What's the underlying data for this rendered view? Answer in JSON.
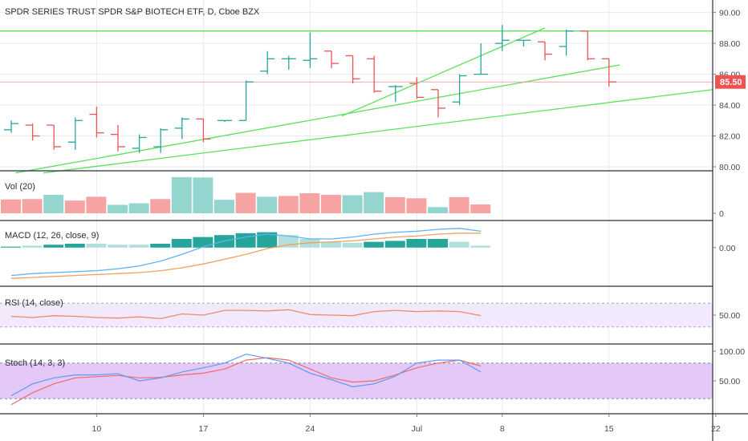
{
  "title": "SPDR SERIES TRUST SPDR S&P BIOTECH ETF, D, Cboe BZX",
  "last_price_label": "85.50",
  "colors": {
    "up": "#26a69a",
    "down": "#ef5350",
    "trend": "#5de05d",
    "last_price_line": "#f5a6a6",
    "macd_line": "#5fb3f0",
    "signal_line": "#f2a05e",
    "rsi_line": "#f08a65",
    "rsi_band": "#f3e9fc",
    "stoch_band": "#e4c8f7",
    "stoch_k": "#5b9bf0",
    "stoch_d": "#ef6a6a",
    "grid": "#e9eaee",
    "axis": "#7a7d85"
  },
  "x_axis": {
    "ticks": [
      {
        "i": 4,
        "label": "10"
      },
      {
        "i": 9,
        "label": "17"
      },
      {
        "i": 14,
        "label": "24"
      },
      {
        "i": 19,
        "label": "Jul"
      },
      {
        "i": 23,
        "label": "8"
      },
      {
        "i": 28,
        "label": "15"
      },
      {
        "i": 33,
        "label": "22"
      }
    ]
  },
  "chart_data": [
    {
      "type": "ohlc",
      "name": "price",
      "ylim": [
        80,
        90.5
      ],
      "yticks": [
        "80.00",
        "82.00",
        "84.00",
        "86.00",
        "88.00",
        "90.00"
      ],
      "bars": [
        {
          "o": 82.4,
          "h": 83.0,
          "l": 82.2,
          "c": 82.8
        },
        {
          "o": 82.7,
          "h": 82.8,
          "l": 81.7,
          "c": 82.0
        },
        {
          "o": 82.7,
          "h": 82.7,
          "l": 81.1,
          "c": 81.3
        },
        {
          "o": 81.6,
          "h": 83.2,
          "l": 81.1,
          "c": 83.0
        },
        {
          "o": 83.4,
          "h": 83.9,
          "l": 81.9,
          "c": 82.2
        },
        {
          "o": 82.1,
          "h": 82.7,
          "l": 81.0,
          "c": 81.3
        },
        {
          "o": 81.2,
          "h": 82.1,
          "l": 80.9,
          "c": 81.9
        },
        {
          "o": 81.3,
          "h": 82.5,
          "l": 80.9,
          "c": 82.4
        },
        {
          "o": 82.5,
          "h": 83.2,
          "l": 81.8,
          "c": 83.1
        },
        {
          "o": 83.1,
          "h": 83.1,
          "l": 81.6,
          "c": 81.8
        },
        {
          "o": 83.0,
          "h": 83.0,
          "l": 82.9,
          "c": 83.0
        },
        {
          "o": 83.0,
          "h": 85.6,
          "l": 83.0,
          "c": 85.5
        },
        {
          "o": 86.2,
          "h": 87.5,
          "l": 86.0,
          "c": 87.0
        },
        {
          "o": 87.0,
          "h": 87.2,
          "l": 86.3,
          "c": 87.0
        },
        {
          "o": 86.9,
          "h": 88.7,
          "l": 86.4,
          "c": 87.0
        },
        {
          "o": 87.5,
          "h": 87.5,
          "l": 86.4,
          "c": 86.7
        },
        {
          "o": 87.2,
          "h": 87.2,
          "l": 85.4,
          "c": 85.7
        },
        {
          "o": 87.0,
          "h": 87.2,
          "l": 84.8,
          "c": 84.9
        },
        {
          "o": 85.2,
          "h": 85.3,
          "l": 84.2,
          "c": 85.2
        },
        {
          "o": 85.4,
          "h": 85.8,
          "l": 84.4,
          "c": 84.5
        },
        {
          "o": 85.0,
          "h": 85.0,
          "l": 83.2,
          "c": 83.8
        },
        {
          "o": 84.2,
          "h": 86.0,
          "l": 84.0,
          "c": 85.9
        },
        {
          "o": 86.0,
          "h": 88.0,
          "l": 86.0,
          "c": 86.0
        },
        {
          "o": 88.0,
          "h": 89.2,
          "l": 87.5,
          "c": 88.2
        },
        {
          "o": 88.2,
          "h": 88.2,
          "l": 87.8,
          "c": 88.2
        },
        {
          "o": 88.1,
          "h": 88.1,
          "l": 86.9,
          "c": 87.3
        },
        {
          "o": 87.8,
          "h": 88.9,
          "l": 87.2,
          "c": 88.8
        },
        {
          "o": 88.8,
          "h": 88.8,
          "l": 86.9,
          "c": 87.0
        },
        {
          "o": 87.0,
          "h": 87.0,
          "l": 85.2,
          "c": 85.5
        }
      ],
      "trendlines": [
        {
          "x1": -1,
          "y1": 88.8,
          "x2": 34,
          "y2": 88.8
        },
        {
          "x1": 15.5,
          "y1": 83.3,
          "x2": 25,
          "y2": 89.0
        },
        {
          "x1": 0.2,
          "y1": 79.6,
          "x2": 28.5,
          "y2": 86.6
        },
        {
          "x1": 1.5,
          "y1": 79.6,
          "x2": 34,
          "y2": 85.2
        }
      ],
      "last_price": 85.5
    },
    {
      "type": "bar",
      "name": "Vol (20)",
      "label": "Vol (20)",
      "ylim": [
        0,
        100
      ],
      "yticks": [
        "0"
      ],
      "values": [
        36,
        37,
        48,
        33,
        43,
        22,
        26,
        37,
        94,
        93,
        35,
        53,
        43,
        45,
        52,
        48,
        47,
        55,
        42,
        39,
        16,
        42,
        23
      ],
      "up": [
        false,
        false,
        true,
        false,
        false,
        true,
        true,
        false,
        true,
        true,
        true,
        false,
        true,
        false,
        false,
        false,
        true,
        true,
        false,
        false,
        true,
        false,
        false
      ]
    },
    {
      "type": "macd",
      "name": "MACD (12, 26, close, 9)",
      "label": "MACD (12, 26, close, 9)",
      "ylim": [
        -1.8,
        1.2
      ],
      "yticks": [
        "0.00"
      ],
      "hist": [
        0.05,
        0.1,
        0.15,
        0.2,
        0.2,
        0.15,
        0.15,
        0.2,
        0.45,
        0.55,
        0.65,
        0.75,
        0.8,
        0.65,
        0.45,
        0.3,
        0.25,
        0.3,
        0.35,
        0.45,
        0.45,
        0.3,
        0.1
      ],
      "hist_up": [
        true,
        false,
        true,
        true,
        false,
        false,
        false,
        true,
        true,
        true,
        true,
        true,
        true,
        false,
        false,
        false,
        false,
        true,
        true,
        true,
        true,
        false,
        false
      ],
      "macd": [
        -1.45,
        -1.35,
        -1.3,
        -1.25,
        -1.2,
        -1.1,
        -0.95,
        -0.7,
        -0.35,
        0.05,
        0.35,
        0.55,
        0.7,
        0.6,
        0.45,
        0.45,
        0.55,
        0.7,
        0.8,
        0.85,
        0.95,
        1.0,
        0.85
      ],
      "signal": [
        -1.6,
        -1.55,
        -1.5,
        -1.45,
        -1.4,
        -1.35,
        -1.3,
        -1.2,
        -1.05,
        -0.85,
        -0.6,
        -0.35,
        -0.05,
        0.15,
        0.25,
        0.3,
        0.35,
        0.45,
        0.55,
        0.6,
        0.7,
        0.75,
        0.75
      ]
    },
    {
      "type": "line",
      "name": "RSI (14, close)",
      "label": "RSI (14, close)",
      "ylim": [
        0,
        100
      ],
      "band": [
        30,
        70
      ],
      "yticks": [
        "50.00"
      ],
      "values": [
        48,
        46,
        49,
        48,
        46,
        45,
        47,
        44,
        52,
        50,
        58,
        58,
        57,
        59,
        51,
        50,
        49,
        56,
        58,
        56,
        57,
        56,
        49
      ]
    },
    {
      "type": "line",
      "name": "Stoch (14, 3, 3)",
      "label": "Stoch (14, 3, 3)",
      "ylim": [
        0,
        100
      ],
      "band": [
        20,
        80
      ],
      "yticks": [
        "50.00",
        "100.00"
      ],
      "k": [
        25,
        45,
        55,
        60,
        60,
        62,
        50,
        55,
        65,
        72,
        80,
        95,
        88,
        80,
        63,
        52,
        40,
        45,
        58,
        80,
        85,
        85,
        65
      ],
      "d": [
        10,
        30,
        45,
        55,
        57,
        59,
        55,
        56,
        60,
        63,
        70,
        85,
        89,
        85,
        70,
        55,
        48,
        50,
        60,
        72,
        80,
        85,
        75
      ]
    }
  ]
}
